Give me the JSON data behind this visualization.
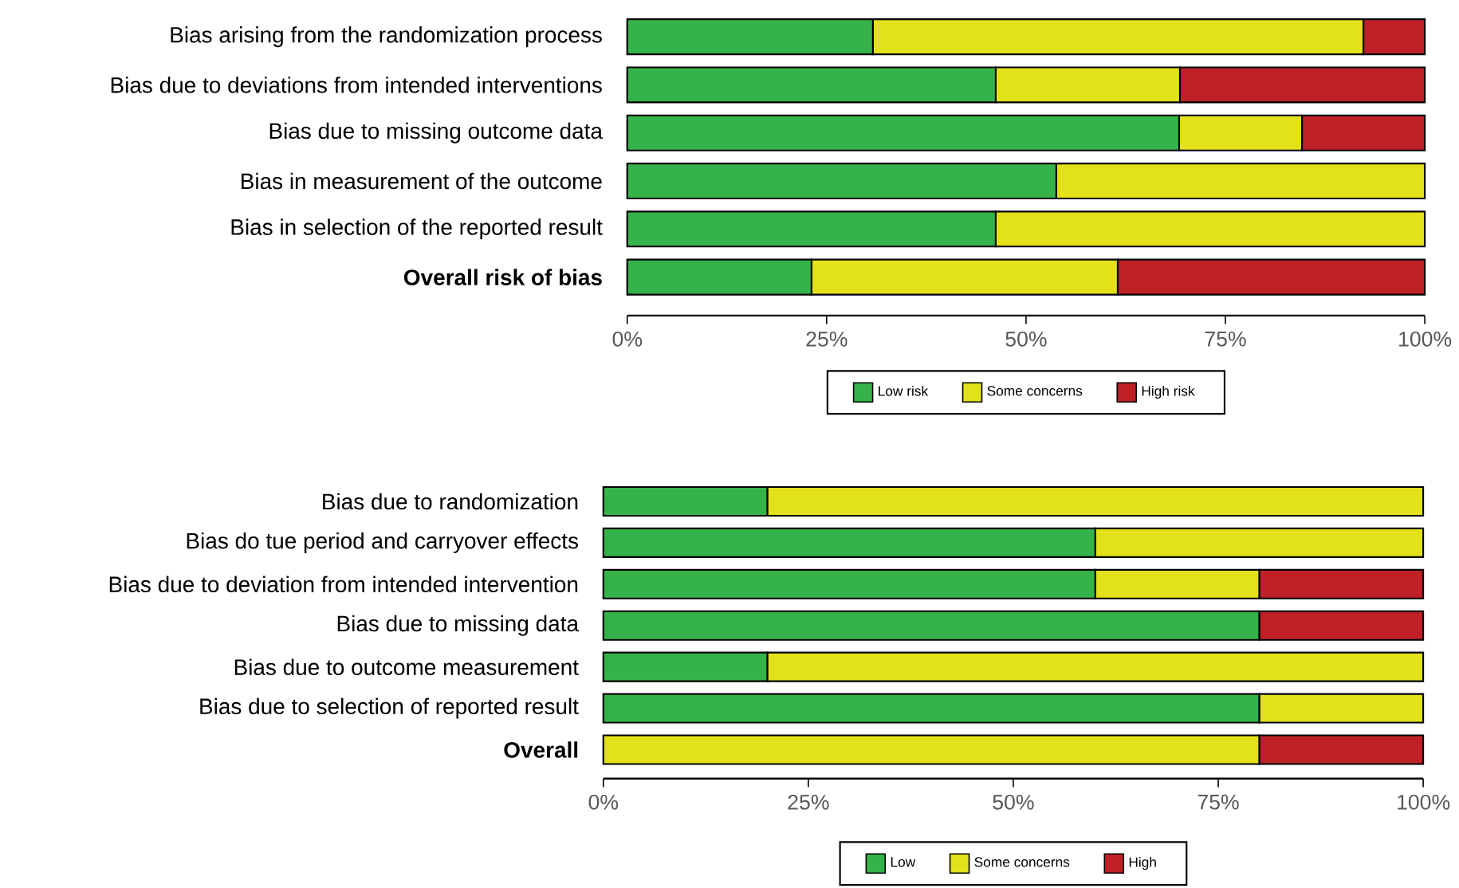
{
  "chart_data": [
    {
      "type": "bar",
      "orientation": "horizontal",
      "stacked": true,
      "categories": [
        "Bias arising from the randomization process",
        "Bias due to deviations from intended interventions",
        "Bias due to missing outcome data",
        "Bias in measurement of the outcome",
        "Bias in selection of the reported result",
        "**Overall risk of bias**"
      ],
      "series": [
        {
          "name": "Low risk",
          "color": "#35b34a",
          "values": [
            30.8,
            46.2,
            69.2,
            53.8,
            46.2,
            23.1
          ]
        },
        {
          "name": "Some concerns",
          "color": "#e2e11a",
          "values": [
            61.5,
            23.1,
            15.4,
            46.2,
            53.8,
            38.4
          ]
        },
        {
          "name": "High risk",
          "color": "#bf2026",
          "values": [
            7.7,
            30.7,
            15.4,
            0,
            0,
            38.5
          ]
        }
      ],
      "xlim": [
        0,
        100
      ],
      "xticks": [
        {
          "value": 0,
          "label": "0%"
        },
        {
          "value": 25,
          "label": "25%"
        },
        {
          "value": 50,
          "label": "50%"
        },
        {
          "value": 75,
          "label": "75%"
        },
        {
          "value": 100,
          "label": "100%"
        }
      ],
      "legend": "bottom"
    },
    {
      "type": "bar",
      "orientation": "horizontal",
      "stacked": true,
      "categories": [
        "Bias due to randomization",
        "Bias do tue period and carryover effects",
        "Bias due to deviation from intended intervention",
        "Bias due to missing data",
        "Bias due to outcome measurement",
        "Bias due to selection of reported result",
        "**Overall**"
      ],
      "series": [
        {
          "name": "Low",
          "color": "#35b34a",
          "values": [
            20,
            60,
            60,
            80,
            20,
            80,
            0
          ]
        },
        {
          "name": "Some concerns",
          "color": "#e2e11a",
          "values": [
            80,
            40,
            20,
            0,
            80,
            20,
            80
          ]
        },
        {
          "name": "High",
          "color": "#bf2026",
          "values": [
            0,
            0,
            20,
            20,
            0,
            0,
            20
          ]
        }
      ],
      "xlim": [
        0,
        100
      ],
      "xticks": [
        {
          "value": 0,
          "label": "0%"
        },
        {
          "value": 25,
          "label": "25%"
        },
        {
          "value": 50,
          "label": "50%"
        },
        {
          "value": 75,
          "label": "75%"
        },
        {
          "value": 100,
          "label": "100%"
        }
      ],
      "legend": "bottom"
    }
  ]
}
